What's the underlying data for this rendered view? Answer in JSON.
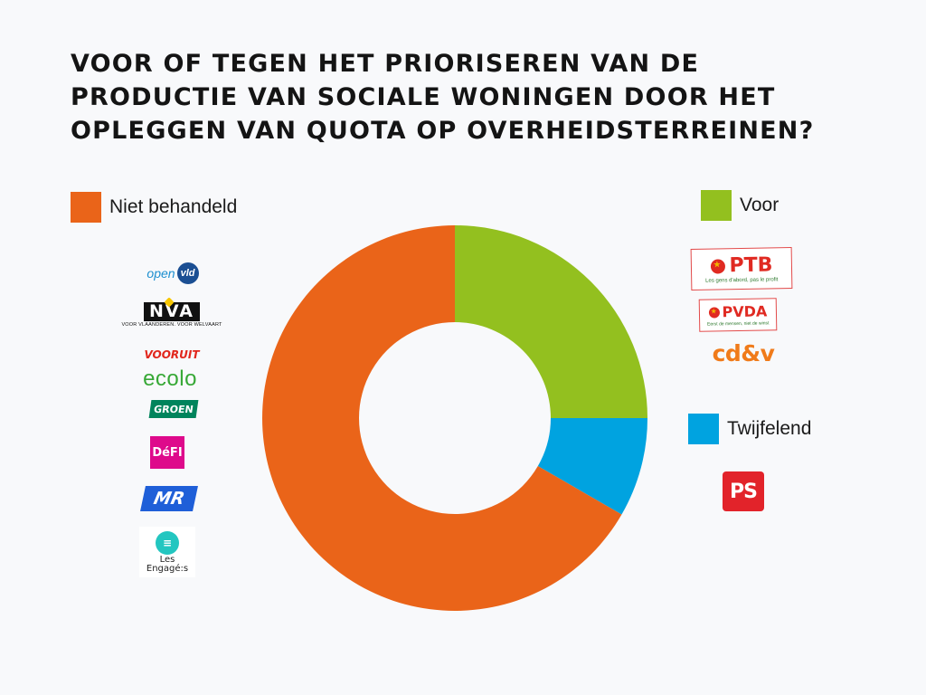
{
  "title": "VOOR OF TEGEN HET PRIORISEREN VAN DE PRODUCTIE VAN SOCIALE WONINGEN DOOR HET OPLEGGEN VAN QUOTA OP OVERHEIDSTERREINEN?",
  "legend": {
    "niet_behandeld": "Niet behandeld",
    "voor": "Voor",
    "twijfelend": "Twijfelend"
  },
  "colors": {
    "niet_behandeld": "#ea6419",
    "voor": "#93c01f",
    "twijfelend": "#00a3e0"
  },
  "logos": {
    "openvld": {
      "t1": "open",
      "t2": "vld"
    },
    "nva": {
      "t1": "NVA",
      "t2": "VOOR VLAANDEREN. VOOR WELVAART"
    },
    "vooruit": "VOORUIT",
    "ecolo": "ecolo",
    "groen": "GROEN",
    "defi": "DéFI",
    "mr": "MR",
    "engages": {
      "t1": "Les",
      "t2": "Engagé:s"
    },
    "ptb": {
      "t1": "PTB",
      "t2": "Les gens d'abord, pas le profit"
    },
    "pvda": {
      "t1": "PVDA",
      "t2": "Eerst de mensen, niet de winst"
    },
    "cdv": "cd&v",
    "ps": "PS"
  },
  "chart_data": {
    "type": "pie",
    "donut": true,
    "title": "VOOR OF TEGEN HET PRIORISEREN VAN DE PRODUCTIE VAN SOCIALE WONINGEN DOOR HET OPLEGGEN VAN QUOTA OP OVERHEIDSTERREINEN?",
    "categories": [
      "Voor",
      "Twijfelend",
      "Niet behandeld"
    ],
    "values": [
      3,
      1,
      8
    ],
    "colors": [
      "#93c01f",
      "#00a3e0",
      "#ea6419"
    ],
    "parties": {
      "Voor": [
        "PTB",
        "PVDA",
        "cd&v"
      ],
      "Twijfelend": [
        "PS"
      ],
      "Niet behandeld": [
        "Open VLD",
        "N-VA",
        "Vooruit",
        "Ecolo",
        "Groen",
        "DéFI",
        "MR",
        "Les Engagé:s"
      ]
    }
  }
}
